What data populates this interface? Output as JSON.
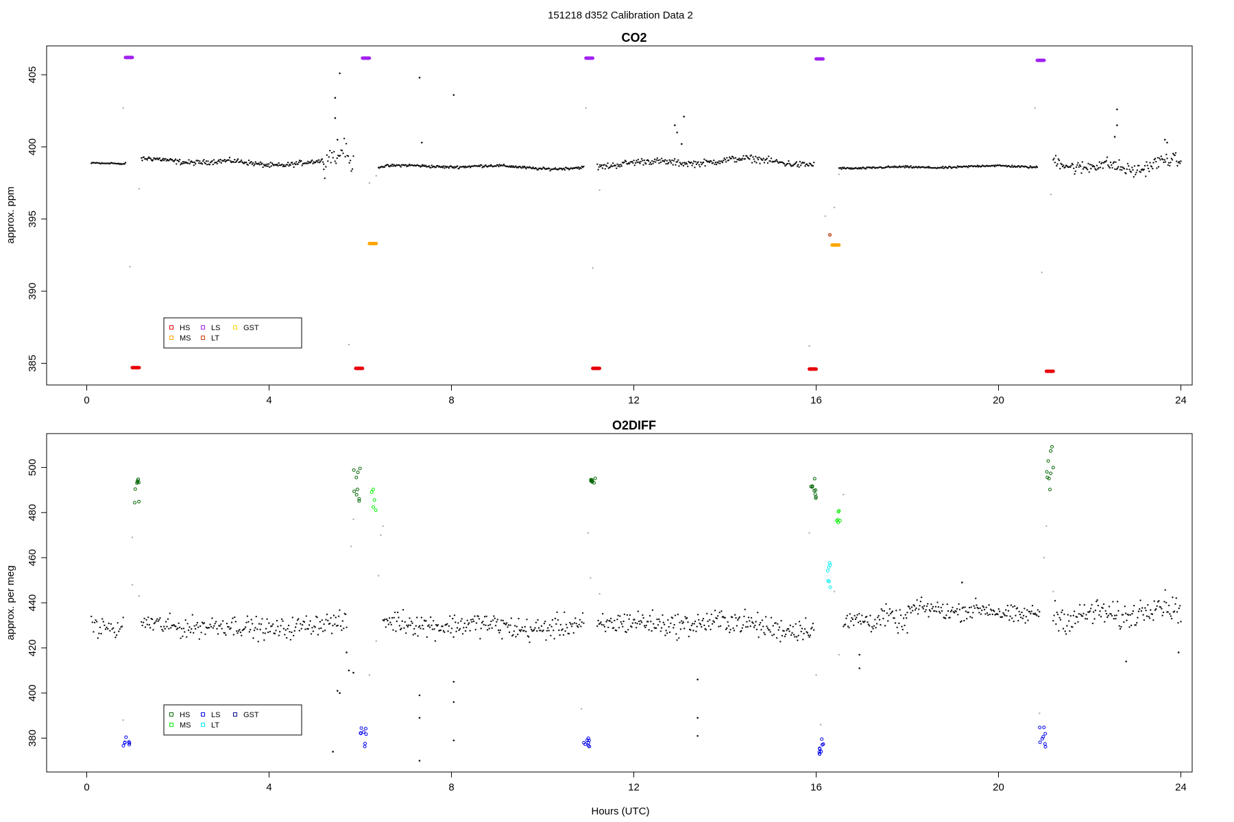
{
  "figure": {
    "suptitle": "151218   d352   Calibration Data 2",
    "xlabel": "Hours (UTC)"
  },
  "chart_data": [
    {
      "type": "scatter",
      "title": "CO2",
      "xlabel": "",
      "ylabel": "approx. ppm",
      "xlim": [
        -0.8,
        24.5
      ],
      "ylim": [
        383.5,
        407.0
      ],
      "xticks": [
        0,
        4,
        8,
        12,
        16,
        20,
        24
      ],
      "yticks": [
        385,
        390,
        395,
        400,
        405
      ],
      "grid": false,
      "legend_position": "bottom-left",
      "legend": [
        {
          "label": "HS",
          "color": "#e8000b"
        },
        {
          "label": "MS",
          "color": "#ffa500"
        },
        {
          "label": "LS",
          "color": "#a020f0"
        },
        {
          "label": "LT",
          "color": "#cd3700"
        },
        {
          "label": "GST",
          "color": "#ffd700"
        }
      ],
      "ambient": {
        "color": "#111111",
        "segments": [
          {
            "x0": 0.1,
            "x1": 0.85,
            "base": 398.85,
            "amp": 0.05,
            "noise": 0.05,
            "n": 40
          },
          {
            "x0": 1.2,
            "x1": 5.2,
            "base": 398.95,
            "amp": 0.25,
            "noise": 0.15,
            "n": 220
          },
          {
            "x0": 5.2,
            "x1": 5.85,
            "base": 399.2,
            "amp": 0.8,
            "noise": 0.5,
            "n": 30
          },
          {
            "x0": 6.4,
            "x1": 10.9,
            "base": 398.6,
            "amp": 0.15,
            "noise": 0.08,
            "n": 240
          },
          {
            "x0": 11.2,
            "x1": 15.95,
            "base": 398.9,
            "amp": 0.3,
            "noise": 0.2,
            "n": 250
          },
          {
            "x0": 16.5,
            "x1": 20.85,
            "base": 398.6,
            "amp": 0.1,
            "noise": 0.06,
            "n": 230
          },
          {
            "x0": 21.2,
            "x1": 24.0,
            "base": 398.8,
            "amp": 0.5,
            "noise": 0.4,
            "n": 150
          }
        ],
        "outliers": [
          [
            5.55,
            405.1
          ],
          [
            5.45,
            403.4
          ],
          [
            5.45,
            402.0
          ],
          [
            5.5,
            400.5
          ],
          [
            7.3,
            404.8
          ],
          [
            7.35,
            400.3
          ],
          [
            8.05,
            403.6
          ],
          [
            12.9,
            401.5
          ],
          [
            12.95,
            401.0
          ],
          [
            13.1,
            402.1
          ],
          [
            13.05,
            400.2
          ],
          [
            22.6,
            402.6
          ],
          [
            22.6,
            401.5
          ],
          [
            22.55,
            400.7
          ],
          [
            23.65,
            400.5
          ],
          [
            23.7,
            400.3
          ]
        ]
      },
      "transitions": [
        [
          0.8,
          402.7
        ],
        [
          0.95,
          391.7
        ],
        [
          1.15,
          397.1
        ],
        [
          5.75,
          386.3
        ],
        [
          6.2,
          397.5
        ],
        [
          6.35,
          398.0
        ],
        [
          10.95,
          402.7
        ],
        [
          11.1,
          391.6
        ],
        [
          11.25,
          397.0
        ],
        [
          15.85,
          386.2
        ],
        [
          16.2,
          395.2
        ],
        [
          16.3,
          393.9
        ],
        [
          16.4,
          395.8
        ],
        [
          16.5,
          398.1
        ],
        [
          20.8,
          402.7
        ],
        [
          20.95,
          391.3
        ],
        [
          21.15,
          396.7
        ]
      ],
      "calibrations": [
        {
          "gas": "LS",
          "color": "#a020f0",
          "x0": 0.85,
          "x1": 1.0,
          "y": 406.2
        },
        {
          "gas": "HS",
          "color": "#e8000b",
          "x0": 1.0,
          "x1": 1.15,
          "y": 384.7
        },
        {
          "gas": "HS",
          "color": "#e8000b",
          "x0": 5.9,
          "x1": 6.05,
          "y": 384.65
        },
        {
          "gas": "LS",
          "color": "#a020f0",
          "x0": 6.05,
          "x1": 6.2,
          "y": 406.15
        },
        {
          "gas": "MS",
          "color": "#ffa500",
          "x0": 6.2,
          "x1": 6.35,
          "y": 393.3
        },
        {
          "gas": "LS",
          "color": "#a020f0",
          "x0": 10.95,
          "x1": 11.1,
          "y": 406.15
        },
        {
          "gas": "HS",
          "color": "#e8000b",
          "x0": 11.1,
          "x1": 11.25,
          "y": 384.65
        },
        {
          "gas": "HS",
          "color": "#e8000b",
          "x0": 15.85,
          "x1": 16.0,
          "y": 384.6
        },
        {
          "gas": "LS",
          "color": "#a020f0",
          "x0": 16.0,
          "x1": 16.15,
          "y": 406.1
        },
        {
          "gas": "LT",
          "color": "#cd3700",
          "x0": 16.3,
          "x1": 16.3,
          "y": 393.9
        },
        {
          "gas": "MS",
          "color": "#ffa500",
          "x0": 16.35,
          "x1": 16.5,
          "y": 393.2
        },
        {
          "gas": "LS",
          "color": "#a020f0",
          "x0": 20.85,
          "x1": 21.0,
          "y": 406.0
        },
        {
          "gas": "HS",
          "color": "#e8000b",
          "x0": 21.05,
          "x1": 21.2,
          "y": 384.45
        }
      ]
    },
    {
      "type": "scatter",
      "title": "O2DIFF",
      "xlabel": "Hours (UTC)",
      "ylabel": "approx. per meg",
      "xlim": [
        -0.8,
        24.5
      ],
      "ylim": [
        365,
        515
      ],
      "xticks": [
        0,
        4,
        8,
        12,
        16,
        20,
        24
      ],
      "yticks": [
        380,
        400,
        420,
        440,
        460,
        480,
        500
      ],
      "grid": false,
      "legend_position": "bottom-left",
      "legend": [
        {
          "label": "HS",
          "color": "#006400"
        },
        {
          "label": "MS",
          "color": "#00ee00"
        },
        {
          "label": "LS",
          "color": "#0000ee"
        },
        {
          "label": "LT",
          "color": "#00eeee"
        },
        {
          "label": "GST",
          "color": "#00008b"
        }
      ],
      "ambient": {
        "color": "#111111",
        "segments": [
          {
            "x0": 0.1,
            "x1": 0.8,
            "base": 429,
            "amp": 1.5,
            "noise": 3.5,
            "n": 30
          },
          {
            "x0": 1.2,
            "x1": 5.7,
            "base": 430,
            "amp": 2.0,
            "noise": 4.0,
            "n": 210
          },
          {
            "x0": 6.5,
            "x1": 10.9,
            "base": 430,
            "amp": 2.0,
            "noise": 4.5,
            "n": 220
          },
          {
            "x0": 11.2,
            "x1": 15.95,
            "base": 430,
            "amp": 2.5,
            "noise": 4.5,
            "n": 240
          },
          {
            "x0": 16.6,
            "x1": 18.0,
            "base": 432,
            "amp": 2.0,
            "noise": 4.0,
            "n": 70
          },
          {
            "x0": 18.0,
            "x1": 20.9,
            "base": 436,
            "amp": 2.0,
            "noise": 3.5,
            "n": 150
          },
          {
            "x0": 21.2,
            "x1": 24.0,
            "base": 436,
            "amp": 4.0,
            "noise": 5.0,
            "n": 140
          }
        ],
        "outliers": [
          [
            5.4,
            374
          ],
          [
            5.5,
            401
          ],
          [
            5.55,
            400
          ],
          [
            5.75,
            410
          ],
          [
            5.85,
            409
          ],
          [
            5.7,
            418
          ],
          [
            7.3,
            399
          ],
          [
            7.3,
            389
          ],
          [
            7.3,
            370
          ],
          [
            8.05,
            405
          ],
          [
            8.05,
            396
          ],
          [
            8.05,
            379
          ],
          [
            13.4,
            406
          ],
          [
            13.4,
            389
          ],
          [
            13.4,
            381
          ],
          [
            16.95,
            417
          ],
          [
            16.95,
            411
          ],
          [
            19.2,
            449
          ],
          [
            22.8,
            414
          ],
          [
            23.95,
            418
          ]
        ]
      },
      "transitions": [
        [
          0.8,
          388
        ],
        [
          1.0,
          448
        ],
        [
          1.0,
          469
        ],
        [
          1.15,
          443
        ],
        [
          5.85,
          477
        ],
        [
          5.8,
          465
        ],
        [
          6.2,
          408
        ],
        [
          6.35,
          423
        ],
        [
          6.4,
          452
        ],
        [
          6.45,
          470
        ],
        [
          6.5,
          474
        ],
        [
          10.85,
          393
        ],
        [
          11.0,
          471
        ],
        [
          11.05,
          451
        ],
        [
          11.25,
          444
        ],
        [
          15.85,
          471
        ],
        [
          16.0,
          408
        ],
        [
          16.1,
          386
        ],
        [
          16.4,
          445
        ],
        [
          16.5,
          417
        ],
        [
          16.6,
          488
        ],
        [
          16.7,
          429
        ],
        [
          20.9,
          391
        ],
        [
          21.0,
          460
        ],
        [
          21.05,
          474
        ],
        [
          21.2,
          445
        ]
      ],
      "calibration_clusters": [
        {
          "gas": "LS",
          "color": "#0000ee",
          "x0": 0.8,
          "x1": 0.95,
          "ymin": 376,
          "ymax": 381,
          "n": 8
        },
        {
          "gas": "HS",
          "color": "#006400",
          "x0": 1.05,
          "x1": 1.15,
          "ymin": 482,
          "ymax": 501,
          "n": 8
        },
        {
          "gas": "HS",
          "color": "#006400",
          "x0": 5.85,
          "x1": 6.0,
          "ymin": 485,
          "ymax": 500,
          "n": 9
        },
        {
          "gas": "LS",
          "color": "#0000ee",
          "x0": 6.0,
          "x1": 6.15,
          "ymin": 376,
          "ymax": 385,
          "n": 8
        },
        {
          "gas": "MS",
          "color": "#00ee00",
          "x0": 6.25,
          "x1": 6.35,
          "ymin": 480,
          "ymax": 491,
          "n": 5
        },
        {
          "gas": "LS",
          "color": "#0000ee",
          "x0": 10.9,
          "x1": 11.05,
          "ymin": 376,
          "ymax": 380,
          "n": 8
        },
        {
          "gas": "HS",
          "color": "#006400",
          "x0": 11.05,
          "x1": 11.2,
          "ymin": 493,
          "ymax": 496,
          "n": 8
        },
        {
          "gas": "HS",
          "color": "#006400",
          "x0": 15.85,
          "x1": 16.0,
          "ymin": 486,
          "ymax": 496,
          "n": 9
        },
        {
          "gas": "LS",
          "color": "#0000ee",
          "x0": 16.05,
          "x1": 16.2,
          "ymin": 371,
          "ymax": 384,
          "n": 9
        },
        {
          "gas": "LT",
          "color": "#00eeee",
          "x0": 16.25,
          "x1": 16.35,
          "ymin": 446,
          "ymax": 458,
          "n": 7
        },
        {
          "gas": "MS",
          "color": "#00ee00",
          "x0": 16.45,
          "x1": 16.55,
          "ymin": 475,
          "ymax": 482,
          "n": 6
        },
        {
          "gas": "LS",
          "color": "#0000ee",
          "x0": 20.9,
          "x1": 21.05,
          "ymin": 376,
          "ymax": 387,
          "n": 8
        },
        {
          "gas": "HS",
          "color": "#006400",
          "x0": 21.05,
          "x1": 21.2,
          "ymin": 490,
          "ymax": 510,
          "n": 9
        }
      ]
    }
  ]
}
